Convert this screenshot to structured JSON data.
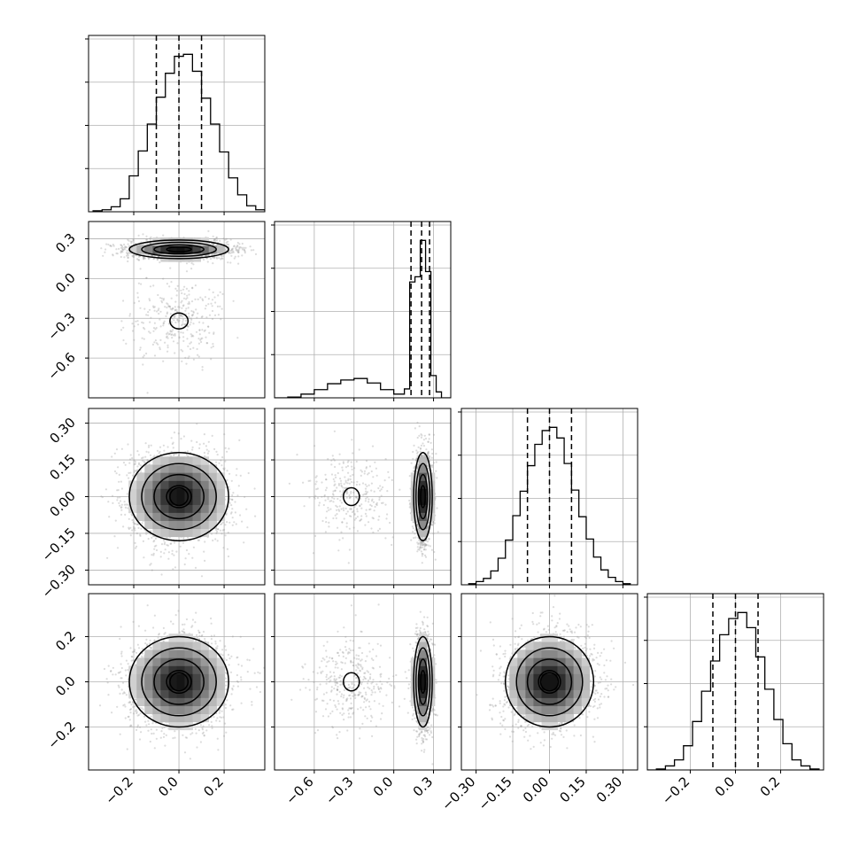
{
  "chart_data": {
    "type": "corner",
    "description_note": "",
    "grid": true,
    "color": "#000000",
    "scatter_color": "#9a9a9a",
    "variables": [
      {
        "range": [
          -0.4,
          0.38
        ],
        "quantiles": [
          -0.1,
          0.0,
          0.1
        ],
        "ticks": [
          -0.2,
          0.0,
          0.2
        ],
        "tick_labels": [
          "−0.2",
          "0.0",
          "0.2"
        ],
        "hist_bins": [
          -0.38,
          -0.34,
          -0.3,
          -0.26,
          -0.22,
          -0.18,
          -0.14,
          -0.1,
          -0.06,
          -0.02,
          0.02,
          0.06,
          0.1,
          0.14,
          0.18,
          0.22,
          0.26,
          0.3,
          0.34,
          0.38
        ],
        "hist_counts": [
          1,
          2,
          5,
          13,
          36,
          61,
          88,
          115,
          139,
          156,
          158,
          141,
          114,
          88,
          60,
          34,
          17,
          6,
          2,
          1
        ]
      },
      {
        "range": [
          -0.9,
          0.43
        ],
        "quantiles": [
          0.13,
          0.21,
          0.27
        ],
        "ticks": [
          -0.6,
          -0.3,
          0.0,
          0.3
        ],
        "tick_labels": [
          "−0.6",
          "−0.3",
          "0.0",
          "0.3"
        ],
        "hist_bins": [
          -0.9,
          -0.8,
          -0.7,
          -0.6,
          -0.5,
          -0.4,
          -0.3,
          -0.2,
          -0.1,
          0.0,
          0.08,
          0.12,
          0.16,
          0.2,
          0.24,
          0.28,
          0.32,
          0.36,
          0.43
        ],
        "hist_counts": [
          0,
          1,
          5,
          11,
          19,
          24,
          26,
          20,
          11,
          5,
          12,
          156,
          163,
          212,
          170,
          30,
          8,
          0
        ]
      },
      {
        "range": [
          -0.36,
          0.36
        ],
        "quantiles": [
          -0.09,
          0.0,
          0.09
        ],
        "ticks": [
          -0.3,
          -0.15,
          0.0,
          0.15,
          0.3
        ],
        "tick_labels": [
          "−0.30",
          "−0.15",
          "0.00",
          "0.15",
          "0.30"
        ],
        "hist_bins": [
          -0.33,
          -0.3,
          -0.27,
          -0.24,
          -0.21,
          -0.18,
          -0.15,
          -0.12,
          -0.09,
          -0.06,
          -0.03,
          0.0,
          0.03,
          0.06,
          0.09,
          0.12,
          0.15,
          0.18,
          0.21,
          0.24,
          0.27,
          0.3,
          0.33
        ],
        "hist_counts": [
          1,
          3,
          6,
          13,
          25,
          42,
          65,
          88,
          112,
          132,
          145,
          148,
          138,
          114,
          89,
          64,
          43,
          26,
          14,
          7,
          3,
          1
        ]
      },
      {
        "range": [
          -0.39,
          0.39
        ],
        "quantiles": [
          -0.1,
          0.0,
          0.1
        ],
        "ticks": [
          -0.2,
          0.0,
          0.2
        ],
        "tick_labels": [
          "−0.2",
          "0.0",
          "0.2"
        ],
        "hist_bins": [
          -0.39,
          -0.35,
          -0.31,
          -0.27,
          -0.23,
          -0.19,
          -0.15,
          -0.11,
          -0.07,
          -0.03,
          0.01,
          0.05,
          0.09,
          0.13,
          0.17,
          0.21,
          0.25,
          0.29,
          0.33,
          0.37
        ],
        "hist_counts": [
          0,
          1,
          4,
          10,
          24,
          48,
          78,
          108,
          134,
          150,
          156,
          141,
          112,
          80,
          50,
          26,
          10,
          4,
          1
        ]
      }
    ],
    "modes": [
      {
        "weight": 0.86,
        "mean": [
          0.0,
          0.22,
          0.0,
          0.0
        ],
        "sd": [
          0.11,
          0.035,
          0.09,
          0.1
        ]
      },
      {
        "weight": 0.14,
        "mean": [
          0.0,
          -0.32,
          0.0,
          0.0
        ],
        "sd": [
          0.1,
          0.15,
          0.09,
          0.1
        ]
      }
    ]
  }
}
